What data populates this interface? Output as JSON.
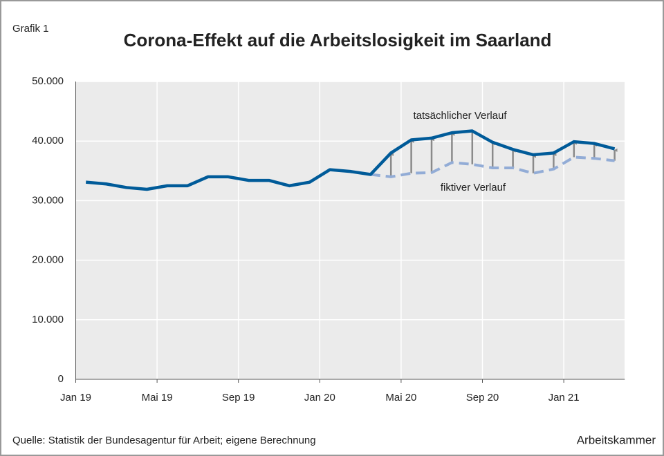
{
  "chart_data": {
    "type": "line",
    "label": "Grafik 1",
    "title": "Corona-Effekt auf die Arbeitslosigkeit im Saarland",
    "source": "Quelle: Statistik der Bundesagentur für Arbeit; eigene Berechnung",
    "publisher": "Arbeitskammer",
    "categories": [
      "Jan 19",
      null,
      null,
      null,
      "Mai 19",
      null,
      null,
      null,
      "Sep 19",
      null,
      null,
      null,
      "Jan 20",
      null,
      null,
      null,
      "Mai 20",
      null,
      null,
      null,
      "Sep 20",
      null,
      null,
      null,
      "Jan 21",
      null,
      null
    ],
    "series": [
      {
        "name": "tatsächlicher Verlauf",
        "color": "#005b99",
        "dashed": false,
        "values": [
          33100,
          32800,
          32200,
          31900,
          32500,
          32500,
          34000,
          34000,
          33400,
          33400,
          32500,
          33100,
          35200,
          34900,
          34400,
          38000,
          40200,
          40500,
          41400,
          41700,
          39800,
          38600,
          37700,
          38000,
          39900,
          39600,
          38700
        ]
      },
      {
        "name": "fiktiver Verlauf",
        "color": "#92acd6",
        "dashed": true,
        "values": [
          null,
          null,
          null,
          null,
          null,
          null,
          null,
          null,
          null,
          null,
          null,
          null,
          null,
          null,
          34400,
          34000,
          34600,
          34700,
          36400,
          36100,
          35500,
          35500,
          34600,
          35300,
          37300,
          37100,
          36700
        ]
      }
    ],
    "ylim": [
      0,
      50000
    ],
    "yticks": [
      0,
      {
        "value": 10000,
        "label": "10.000"
      },
      {
        "value": 20000,
        "label": "20.000"
      },
      {
        "value": 30000,
        "label": "30.000"
      },
      {
        "value": 40000,
        "label": "40.000"
      },
      {
        "value": 50000,
        "label": "50.000"
      }
    ],
    "grid": true,
    "arrow_color": "#8a8a8a"
  }
}
